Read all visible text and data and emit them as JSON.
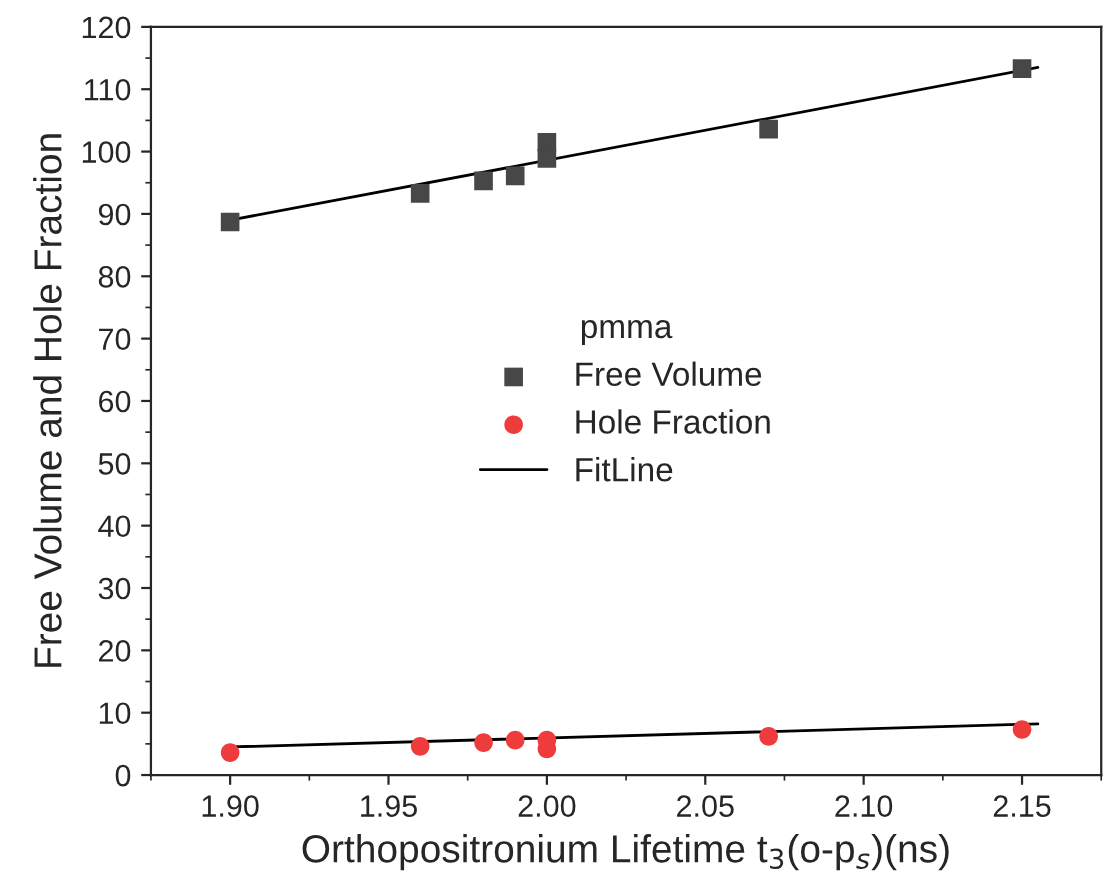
{
  "chart_data": {
    "type": "scatter",
    "xlabel": "Orthopositronium Lifetime t$_{3}$(o-p$_{s}$)(ns)",
    "ylabel": "Free Volume and Hole Fraction",
    "legend_title": "pmma",
    "legend": "center",
    "grid": false,
    "xlim": [
      1.875,
      2.175
    ],
    "xticks": [
      {
        "value": 1.9,
        "label": "1.90"
      },
      {
        "value": 1.95,
        "label": "1.95"
      },
      {
        "value": 2.0,
        "label": "2.00"
      },
      {
        "value": 2.05,
        "label": "2.05"
      },
      {
        "value": 2.1,
        "label": "2.10"
      },
      {
        "value": 2.15,
        "label": "2.15"
      }
    ],
    "ylim": [
      0,
      120
    ],
    "yticks": [
      0,
      10,
      20,
      30,
      40,
      50,
      60,
      70,
      80,
      90,
      100,
      110,
      120
    ],
    "series": [
      {
        "name": "Free Volume",
        "marker": "square",
        "color": "#474747",
        "x": [
          1.9,
          1.96,
          1.98,
          1.99,
          2.0,
          2.0,
          2.07,
          2.15
        ],
        "values": [
          88.7,
          93.3,
          95.3,
          96.1,
          98.9,
          101.5,
          103.6,
          113.3
        ]
      },
      {
        "name": "Hole Fraction",
        "marker": "circle",
        "color": "#ee3b3b",
        "x": [
          1.9,
          1.96,
          1.98,
          1.99,
          2.0,
          2.0,
          2.07,
          2.15
        ],
        "values": [
          3.6,
          4.6,
          5.2,
          5.6,
          4.2,
          5.6,
          6.2,
          7.3
        ]
      },
      {
        "name": "FitLine",
        "type": "line",
        "marker": "none",
        "line_style": "solid",
        "color": "#000000",
        "x": [
          1.9,
          2.155
        ],
        "values": [
          89.0,
          113.5
        ]
      },
      {
        "type": "line",
        "marker": "none",
        "line_style": "solid",
        "color": "#000000",
        "x": [
          1.9,
          2.155
        ],
        "values": [
          4.5,
          8.2
        ]
      }
    ]
  }
}
